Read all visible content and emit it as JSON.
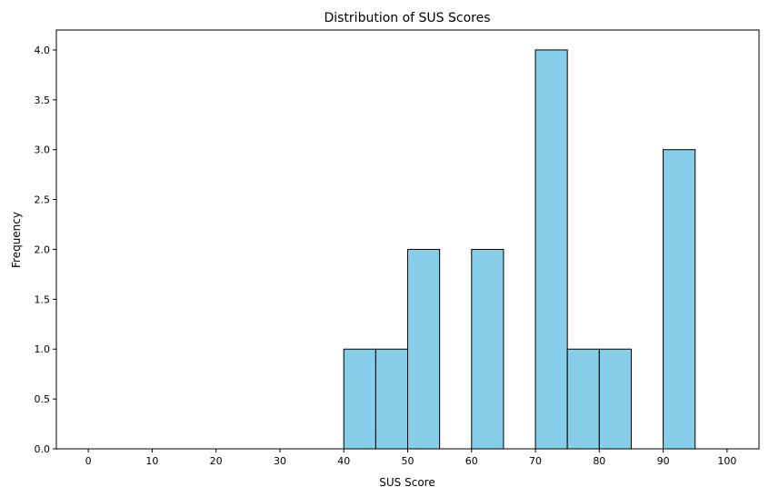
{
  "chart_data": {
    "type": "bar",
    "title": "Distribution of SUS Scores",
    "xlabel": "SUS Score",
    "ylabel": "Frequency",
    "bins": [
      {
        "start": 40,
        "end": 45,
        "count": 1
      },
      {
        "start": 45,
        "end": 50,
        "count": 1
      },
      {
        "start": 50,
        "end": 55,
        "count": 2
      },
      {
        "start": 60,
        "end": 65,
        "count": 2
      },
      {
        "start": 70,
        "end": 75,
        "count": 4
      },
      {
        "start": 75,
        "end": 80,
        "count": 1
      },
      {
        "start": 80,
        "end": 85,
        "count": 1
      },
      {
        "start": 90,
        "end": 95,
        "count": 3
      }
    ],
    "xlim": [
      -5,
      105
    ],
    "ylim": [
      0,
      4.2
    ],
    "x_ticks": [
      0,
      10,
      20,
      30,
      40,
      50,
      60,
      70,
      80,
      90,
      100
    ],
    "y_ticks": [
      "0.0",
      "0.5",
      "1.0",
      "1.5",
      "2.0",
      "2.5",
      "3.0",
      "3.5",
      "4.0"
    ],
    "grid": false,
    "colors": {
      "bar_fill": "#87CEEB",
      "bar_edge": "#000000"
    }
  }
}
